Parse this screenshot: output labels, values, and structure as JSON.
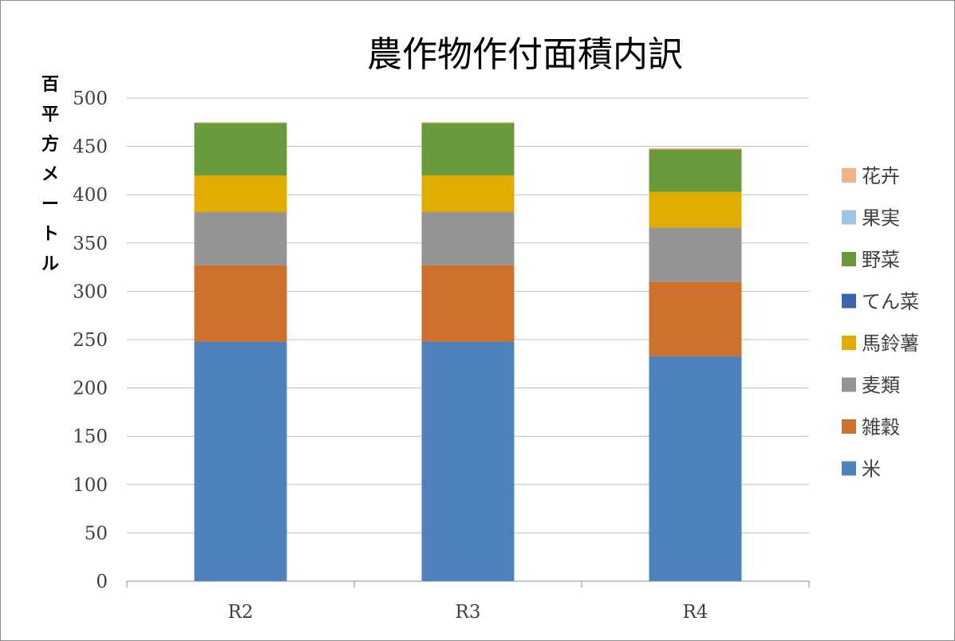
{
  "chart_data": {
    "type": "bar",
    "stacked": true,
    "title": "農作物作付面積内訳",
    "ylabel": "百平方メートル",
    "categories": [
      "R2",
      "R3",
      "R4"
    ],
    "ylim": [
      0,
      500
    ],
    "yticks": [
      0,
      50,
      100,
      150,
      200,
      250,
      300,
      350,
      400,
      450,
      500
    ],
    "grid": true,
    "legend_position": "right",
    "series": [
      {
        "name": "米",
        "color": "#4f81bd",
        "values": [
          248,
          248,
          233
        ]
      },
      {
        "name": "雑穀",
        "color": "#ce6f2c",
        "values": [
          79,
          79,
          77
        ]
      },
      {
        "name": "麦類",
        "color": "#949494",
        "values": [
          55,
          55,
          56
        ]
      },
      {
        "name": "馬鈴薯",
        "color": "#e0ac00",
        "values": [
          38,
          38,
          37
        ]
      },
      {
        "name": "てん菜",
        "color": "#3b64ad",
        "values": [
          0,
          0,
          0
        ]
      },
      {
        "name": "野菜",
        "color": "#689a3c",
        "values": [
          54,
          54,
          44
        ]
      },
      {
        "name": "果実",
        "color": "#9dc3e6",
        "values": [
          0,
          0,
          0
        ]
      },
      {
        "name": "花卉",
        "color": "#f4b183",
        "values": [
          1,
          1,
          1
        ]
      }
    ]
  }
}
